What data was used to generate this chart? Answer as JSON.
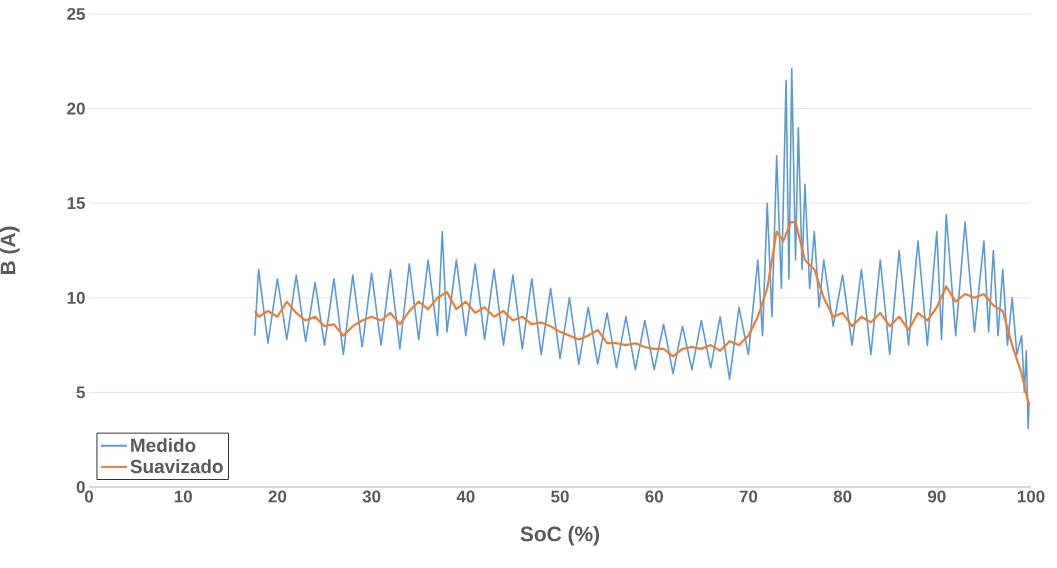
{
  "chart_data": {
    "type": "line",
    "xlabel": "SoC (%)",
    "ylabel": "B (A)",
    "xlim": [
      0,
      100
    ],
    "xticks": [
      0,
      10,
      20,
      30,
      40,
      50,
      60,
      70,
      80,
      90,
      100
    ],
    "ylim": [
      0,
      25
    ],
    "yticks": [
      0,
      5,
      10,
      15,
      20,
      25
    ],
    "grid": "y",
    "legend": "bottom left",
    "series": [
      {
        "name": "Medido",
        "color": "#5b9bd5",
        "x": [
          17.6,
          18,
          19,
          20,
          21,
          22,
          23,
          24,
          25,
          26,
          27,
          28,
          29,
          30,
          31,
          32,
          33,
          34,
          35,
          36,
          37,
          37.5,
          38,
          39,
          40,
          41,
          42,
          43,
          44,
          45,
          46,
          47,
          48,
          49,
          50,
          51,
          52,
          53,
          54,
          55,
          56,
          57,
          58,
          59,
          60,
          61,
          62,
          63,
          64,
          65,
          66,
          67,
          68,
          69,
          70,
          71,
          71.5,
          72,
          72.5,
          73,
          73.5,
          74,
          74.3,
          74.6,
          75,
          75.3,
          75.7,
          76,
          76.5,
          77,
          77.5,
          78,
          79,
          80,
          81,
          82,
          83,
          84,
          85,
          86,
          87,
          88,
          89,
          90,
          90.5,
          91,
          92,
          93,
          94,
          95,
          95.5,
          96,
          96.5,
          97,
          97.5,
          98,
          98.5,
          99,
          99.3,
          99.5,
          99.7,
          99.8
        ],
        "values": [
          8.0,
          11.5,
          7.6,
          11.0,
          7.8,
          11.2,
          7.7,
          10.8,
          7.5,
          11.0,
          7.0,
          11.2,
          7.4,
          11.3,
          7.5,
          11.5,
          7.3,
          11.8,
          7.8,
          12.0,
          8.0,
          13.5,
          8.2,
          12.0,
          8.0,
          11.8,
          7.8,
          11.5,
          7.5,
          11.2,
          7.3,
          11.0,
          7.0,
          10.5,
          6.8,
          10.0,
          6.5,
          9.5,
          6.5,
          9.2,
          6.3,
          9.0,
          6.2,
          8.8,
          6.2,
          8.6,
          6.0,
          8.5,
          6.2,
          8.8,
          6.3,
          9.0,
          5.7,
          9.5,
          7.0,
          12.0,
          8.0,
          15.0,
          9.0,
          17.5,
          10.5,
          21.5,
          11.0,
          22.1,
          12.0,
          19.0,
          11.5,
          16.0,
          10.5,
          13.5,
          9.5,
          12.0,
          8.5,
          11.2,
          7.5,
          11.5,
          7.0,
          12.0,
          7.0,
          12.5,
          7.5,
          13.0,
          7.5,
          13.5,
          7.8,
          14.4,
          8.0,
          14.0,
          8.2,
          13.0,
          8.2,
          12.5,
          8.0,
          11.5,
          7.5,
          10.0,
          7.0,
          8.0,
          5.0,
          7.2,
          3.1,
          4.5
        ]
      },
      {
        "name": "Suavizado",
        "color": "#ed7d31",
        "x": [
          17.6,
          18,
          19,
          20,
          21,
          22,
          23,
          24,
          25,
          26,
          27,
          28,
          29,
          30,
          31,
          32,
          33,
          34,
          35,
          36,
          37,
          38,
          39,
          40,
          41,
          42,
          43,
          44,
          45,
          46,
          47,
          48,
          49,
          50,
          51,
          52,
          53,
          54,
          55,
          56,
          57,
          58,
          59,
          60,
          61,
          62,
          63,
          64,
          65,
          66,
          67,
          68,
          69,
          70,
          71,
          72,
          73,
          73.7,
          74.5,
          75,
          76,
          77,
          78,
          79,
          80,
          81,
          82,
          83,
          84,
          85,
          86,
          87,
          88,
          89,
          90,
          91,
          92,
          93,
          94,
          95,
          96,
          97,
          98,
          99,
          99.8
        ],
        "values": [
          9.3,
          9.0,
          9.3,
          9.0,
          9.8,
          9.2,
          8.8,
          9.0,
          8.5,
          8.6,
          8.0,
          8.5,
          8.8,
          9.0,
          8.8,
          9.2,
          8.6,
          9.3,
          9.8,
          9.4,
          10.0,
          10.3,
          9.4,
          9.8,
          9.2,
          9.5,
          9.0,
          9.3,
          8.8,
          9.0,
          8.6,
          8.7,
          8.5,
          8.2,
          8.0,
          7.8,
          8.0,
          8.3,
          7.6,
          7.6,
          7.5,
          7.6,
          7.4,
          7.3,
          7.3,
          6.9,
          7.3,
          7.4,
          7.3,
          7.5,
          7.2,
          7.7,
          7.5,
          8.0,
          9.0,
          10.5,
          13.5,
          13.0,
          14.0,
          14.0,
          12.0,
          11.5,
          10.0,
          9.0,
          9.2,
          8.5,
          9.0,
          8.7,
          9.2,
          8.5,
          9.0,
          8.3,
          9.2,
          8.8,
          9.5,
          10.6,
          9.8,
          10.2,
          10.0,
          10.2,
          9.6,
          9.3,
          7.5,
          6.0,
          4.3
        ]
      }
    ]
  }
}
